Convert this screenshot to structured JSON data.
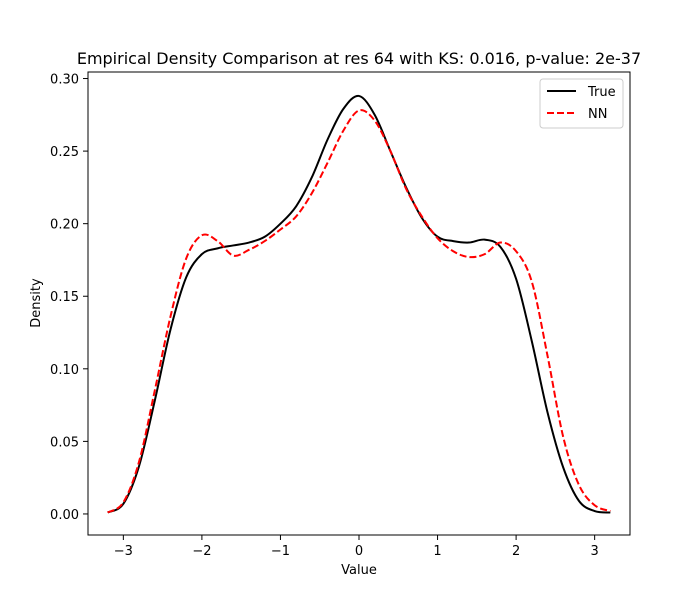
{
  "chart_data": {
    "type": "line",
    "title": "Empirical Density Comparison at res 64 with KS: 0.016, p-value: 2e-37",
    "xlabel": "Value",
    "ylabel": "Density",
    "xlim": [
      -3.45,
      3.45
    ],
    "ylim": [
      -0.0145,
      0.3045
    ],
    "xticks": [
      -3,
      -2,
      -1,
      0,
      1,
      2,
      3
    ],
    "xtick_labels": [
      "−3",
      "−2",
      "−1",
      "0",
      "1",
      "2",
      "3"
    ],
    "yticks": [
      0.0,
      0.05,
      0.1,
      0.15,
      0.2,
      0.25,
      0.3
    ],
    "ytick_labels": [
      "0.00",
      "0.05",
      "0.10",
      "0.15",
      "0.20",
      "0.25",
      "0.30"
    ],
    "grid": false,
    "legend": "top-right",
    "series": [
      {
        "name": "True",
        "color": "#000000",
        "dash": "solid",
        "x": [
          -3.2,
          -3.0,
          -2.8,
          -2.6,
          -2.4,
          -2.2,
          -2.0,
          -1.8,
          -1.6,
          -1.4,
          -1.2,
          -1.0,
          -0.8,
          -0.6,
          -0.4,
          -0.2,
          0.0,
          0.2,
          0.4,
          0.6,
          0.8,
          1.0,
          1.2,
          1.4,
          1.6,
          1.8,
          2.0,
          2.2,
          2.4,
          2.6,
          2.8,
          3.0,
          3.2
        ],
        "y": [
          0.001,
          0.007,
          0.033,
          0.078,
          0.127,
          0.163,
          0.179,
          0.183,
          0.185,
          0.187,
          0.191,
          0.2,
          0.212,
          0.232,
          0.258,
          0.279,
          0.288,
          0.275,
          0.25,
          0.225,
          0.204,
          0.191,
          0.188,
          0.187,
          0.189,
          0.184,
          0.162,
          0.119,
          0.07,
          0.032,
          0.009,
          0.002,
          0.001
        ]
      },
      {
        "name": "NN",
        "color": "#ff0000",
        "dash": "dashed",
        "x": [
          -3.2,
          -3.0,
          -2.8,
          -2.6,
          -2.4,
          -2.2,
          -2.0,
          -1.8,
          -1.6,
          -1.4,
          -1.2,
          -1.0,
          -0.8,
          -0.6,
          -0.4,
          -0.2,
          0.0,
          0.2,
          0.4,
          0.6,
          0.8,
          1.0,
          1.2,
          1.4,
          1.6,
          1.8,
          2.0,
          2.2,
          2.4,
          2.6,
          2.8,
          3.0,
          3.2
        ],
        "y": [
          0.001,
          0.008,
          0.036,
          0.085,
          0.136,
          0.176,
          0.192,
          0.188,
          0.178,
          0.182,
          0.188,
          0.196,
          0.205,
          0.221,
          0.242,
          0.264,
          0.278,
          0.271,
          0.25,
          0.224,
          0.205,
          0.19,
          0.181,
          0.177,
          0.179,
          0.187,
          0.181,
          0.16,
          0.109,
          0.053,
          0.02,
          0.006,
          0.002
        ]
      }
    ]
  }
}
